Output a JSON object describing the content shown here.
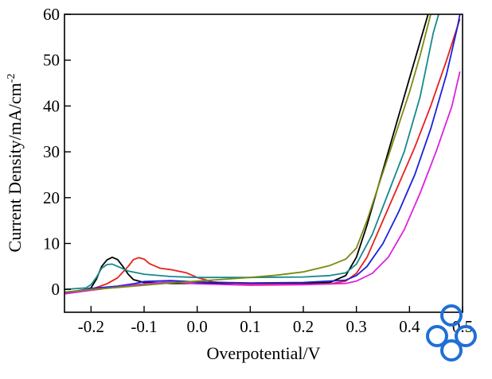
{
  "chart_data": {
    "type": "line",
    "title": "",
    "xlabel": "Overpotential/V",
    "ylabel": "Current Density/mA/cm",
    "ylabel_superscript": "-2",
    "xlim": [
      -0.25,
      0.5
    ],
    "ylim": [
      -5,
      60
    ],
    "x_ticks": [
      -0.2,
      -0.1,
      0.0,
      0.1,
      0.2,
      0.3,
      0.4,
      0.5
    ],
    "x_tick_labels": [
      "-0.2",
      "-0.1",
      "0.0",
      "0.1",
      "0.2",
      "0.3",
      "0.4",
      "0.5"
    ],
    "y_ticks": [
      0,
      10,
      20,
      30,
      40,
      50,
      60
    ],
    "y_tick_labels": [
      "0",
      "10",
      "20",
      "30",
      "40",
      "50",
      "60"
    ],
    "grid": false,
    "legend": "none",
    "series": [
      {
        "color": "#000000",
        "points": [
          [
            -0.25,
            -1.0
          ],
          [
            -0.22,
            -0.3
          ],
          [
            -0.2,
            0.3
          ],
          [
            -0.19,
            2.2
          ],
          [
            -0.18,
            5.0
          ],
          [
            -0.17,
            6.4
          ],
          [
            -0.16,
            7.0
          ],
          [
            -0.15,
            6.5
          ],
          [
            -0.14,
            5.0
          ],
          [
            -0.13,
            3.3
          ],
          [
            -0.12,
            2.1
          ],
          [
            -0.1,
            1.5
          ],
          [
            -0.05,
            1.3
          ],
          [
            0.0,
            1.3
          ],
          [
            0.1,
            1.3
          ],
          [
            0.2,
            1.3
          ],
          [
            0.25,
            1.5
          ],
          [
            0.28,
            3.0
          ],
          [
            0.3,
            7.0
          ],
          [
            0.32,
            14.0
          ],
          [
            0.34,
            22.0
          ],
          [
            0.36,
            30.0
          ],
          [
            0.38,
            38.0
          ],
          [
            0.4,
            46.0
          ],
          [
            0.42,
            54.0
          ],
          [
            0.435,
            60.0
          ]
        ]
      },
      {
        "color": "#e8201c",
        "points": [
          [
            -0.25,
            -0.8
          ],
          [
            -0.2,
            0.0
          ],
          [
            -0.17,
            1.2
          ],
          [
            -0.15,
            2.5
          ],
          [
            -0.13,
            5.0
          ],
          [
            -0.12,
            6.5
          ],
          [
            -0.11,
            6.9
          ],
          [
            -0.1,
            6.6
          ],
          [
            -0.09,
            5.6
          ],
          [
            -0.07,
            4.6
          ],
          [
            -0.05,
            4.3
          ],
          [
            -0.02,
            3.6
          ],
          [
            0.0,
            2.6
          ],
          [
            0.03,
            1.6
          ],
          [
            0.1,
            1.1
          ],
          [
            0.2,
            1.1
          ],
          [
            0.25,
            1.2
          ],
          [
            0.28,
            1.8
          ],
          [
            0.3,
            3.5
          ],
          [
            0.32,
            7.0
          ],
          [
            0.35,
            15.0
          ],
          [
            0.38,
            23.0
          ],
          [
            0.41,
            31.0
          ],
          [
            0.44,
            40.0
          ],
          [
            0.47,
            50.0
          ],
          [
            0.495,
            59.0
          ]
        ]
      },
      {
        "color": "#1a22d9",
        "points": [
          [
            -0.25,
            -0.8
          ],
          [
            -0.2,
            0.2
          ],
          [
            -0.15,
            0.7
          ],
          [
            -0.12,
            1.2
          ],
          [
            -0.1,
            1.7
          ],
          [
            -0.05,
            1.9
          ],
          [
            0.0,
            1.6
          ],
          [
            0.1,
            1.4
          ],
          [
            0.2,
            1.5
          ],
          [
            0.28,
            2.0
          ],
          [
            0.3,
            3.0
          ],
          [
            0.32,
            5.0
          ],
          [
            0.35,
            10.0
          ],
          [
            0.38,
            17.0
          ],
          [
            0.41,
            25.0
          ],
          [
            0.44,
            35.0
          ],
          [
            0.47,
            47.0
          ],
          [
            0.49,
            57.0
          ],
          [
            0.495,
            60.0
          ]
        ]
      },
      {
        "color": "#dd22dd",
        "points": [
          [
            -0.25,
            -1.0
          ],
          [
            -0.2,
            -0.2
          ],
          [
            -0.15,
            0.5
          ],
          [
            -0.1,
            1.2
          ],
          [
            -0.05,
            1.6
          ],
          [
            0.0,
            1.2
          ],
          [
            0.1,
            0.9
          ],
          [
            0.2,
            1.0
          ],
          [
            0.28,
            1.3
          ],
          [
            0.3,
            1.8
          ],
          [
            0.33,
            3.5
          ],
          [
            0.36,
            7.0
          ],
          [
            0.39,
            13.0
          ],
          [
            0.42,
            21.0
          ],
          [
            0.45,
            30.0
          ],
          [
            0.48,
            40.0
          ],
          [
            0.495,
            47.5
          ]
        ]
      },
      {
        "color": "#158a8a",
        "points": [
          [
            -0.25,
            0.0
          ],
          [
            -0.21,
            0.3
          ],
          [
            -0.2,
            1.0
          ],
          [
            -0.19,
            2.6
          ],
          [
            -0.18,
            4.6
          ],
          [
            -0.17,
            5.4
          ],
          [
            -0.16,
            5.5
          ],
          [
            -0.15,
            5.0
          ],
          [
            -0.13,
            4.0
          ],
          [
            -0.1,
            3.3
          ],
          [
            -0.05,
            2.8
          ],
          [
            0.0,
            2.6
          ],
          [
            0.1,
            2.6
          ],
          [
            0.2,
            2.7
          ],
          [
            0.25,
            3.0
          ],
          [
            0.28,
            3.6
          ],
          [
            0.3,
            5.5
          ],
          [
            0.33,
            12.0
          ],
          [
            0.36,
            21.0
          ],
          [
            0.39,
            30.0
          ],
          [
            0.42,
            42.0
          ],
          [
            0.445,
            56.0
          ],
          [
            0.455,
            60.0
          ]
        ]
      },
      {
        "color": "#7a8a10",
        "points": [
          [
            -0.25,
            -0.6
          ],
          [
            -0.2,
            0.0
          ],
          [
            -0.15,
            0.4
          ],
          [
            -0.1,
            0.9
          ],
          [
            -0.05,
            1.4
          ],
          [
            0.0,
            1.8
          ],
          [
            0.05,
            2.2
          ],
          [
            0.1,
            2.6
          ],
          [
            0.15,
            3.1
          ],
          [
            0.2,
            3.8
          ],
          [
            0.25,
            5.2
          ],
          [
            0.28,
            6.6
          ],
          [
            0.3,
            9.0
          ],
          [
            0.32,
            15.0
          ],
          [
            0.34,
            22.0
          ],
          [
            0.36,
            29.0
          ],
          [
            0.38,
            36.0
          ],
          [
            0.4,
            43.0
          ],
          [
            0.42,
            51.0
          ],
          [
            0.44,
            60.0
          ]
        ]
      }
    ]
  }
}
